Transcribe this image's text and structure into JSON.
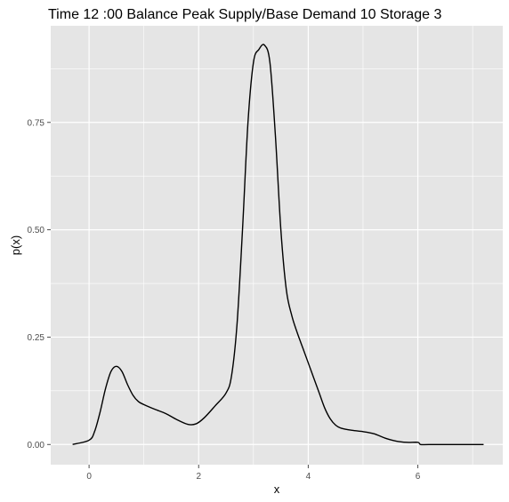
{
  "chart_data": {
    "type": "line",
    "title": "Time  12 :00  Balance   Peak Supply/Base Demand  10 Storage 3",
    "xlabel": "x",
    "ylabel": "p(x)",
    "xlim": [
      -0.7,
      7.55
    ],
    "ylim": [
      -0.047,
      0.975
    ],
    "x_ticks": [
      0,
      2,
      4,
      6
    ],
    "x_tick_labels": [
      "0",
      "2",
      "4",
      "6"
    ],
    "y_ticks": [
      0.0,
      0.25,
      0.5,
      0.75
    ],
    "y_tick_labels": [
      "0.00",
      "0.25",
      "0.50",
      "0.75"
    ],
    "grid": true,
    "colors": {
      "panel": "#e5e5e5",
      "grid": "#ffffff",
      "line": "#000000",
      "tick": "#4d4d4d"
    },
    "series": [
      {
        "x": [
          -0.3,
          0.0,
          0.1,
          0.2,
          0.3,
          0.4,
          0.5,
          0.6,
          0.7,
          0.8,
          0.9,
          1.0,
          1.2,
          1.4,
          1.6,
          1.8,
          1.95,
          2.1,
          2.3,
          2.5,
          2.6,
          2.7,
          2.8,
          2.9,
          3.0,
          3.1,
          3.2,
          3.3,
          3.4,
          3.5,
          3.6,
          3.7,
          3.8,
          3.9,
          4.0,
          4.1,
          4.2,
          4.3,
          4.4,
          4.5,
          4.6,
          4.8,
          5.0,
          5.2,
          5.4,
          5.6,
          5.8,
          6.0,
          6.05,
          6.2,
          6.6,
          7.0,
          7.2
        ],
        "y": [
          0.0,
          0.01,
          0.03,
          0.075,
          0.13,
          0.17,
          0.182,
          0.17,
          0.14,
          0.115,
          0.1,
          0.093,
          0.082,
          0.072,
          0.058,
          0.047,
          0.048,
          0.062,
          0.09,
          0.12,
          0.16,
          0.28,
          0.5,
          0.75,
          0.89,
          0.92,
          0.93,
          0.89,
          0.72,
          0.5,
          0.36,
          0.3,
          0.26,
          0.225,
          0.19,
          0.155,
          0.12,
          0.085,
          0.06,
          0.045,
          0.038,
          0.033,
          0.03,
          0.025,
          0.015,
          0.008,
          0.005,
          0.005,
          0.0,
          0.0,
          0.0,
          0.0,
          0.0
        ]
      }
    ]
  }
}
